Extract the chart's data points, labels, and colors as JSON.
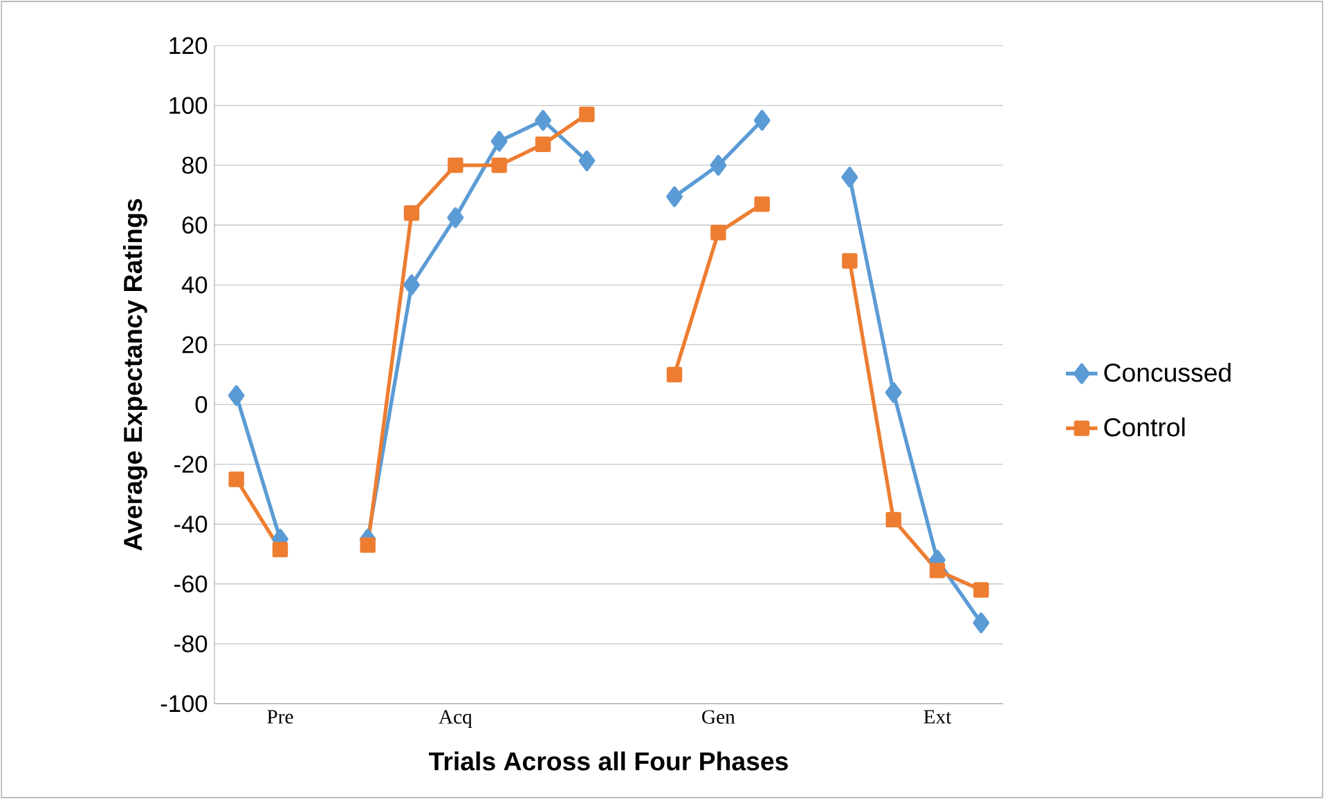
{
  "chart_data": {
    "type": "line",
    "xlabel": "Trials Across all Four Phases",
    "ylabel": "Average Expectancy Ratings",
    "categories": [
      null,
      "Pre",
      null,
      null,
      null,
      "Acq",
      null,
      null,
      null,
      null,
      null,
      "Gen",
      null,
      null,
      null,
      null,
      "Ext",
      null
    ],
    "series": [
      {
        "name": "Concussed",
        "color": "#5b9bd5",
        "marker": "diamond",
        "values": [
          3,
          -45,
          null,
          -45,
          40,
          62.5,
          88,
          95,
          81.5,
          null,
          69.5,
          80,
          95,
          null,
          76,
          4,
          -52,
          -73
        ]
      },
      {
        "name": "Control",
        "color": "#ed7d31",
        "marker": "square",
        "values": [
          -25,
          -48.5,
          null,
          -47,
          64,
          80,
          80,
          87,
          97,
          null,
          10,
          57.5,
          67,
          null,
          48,
          -38.5,
          -55.5,
          -62
        ]
      }
    ],
    "ylim": [
      -100,
      120
    ],
    "yticks": [
      -100,
      -80,
      -60,
      -40,
      -20,
      0,
      20,
      40,
      60,
      80,
      100,
      120
    ],
    "grid": "y",
    "legend": "right",
    "line_style": "solid"
  }
}
